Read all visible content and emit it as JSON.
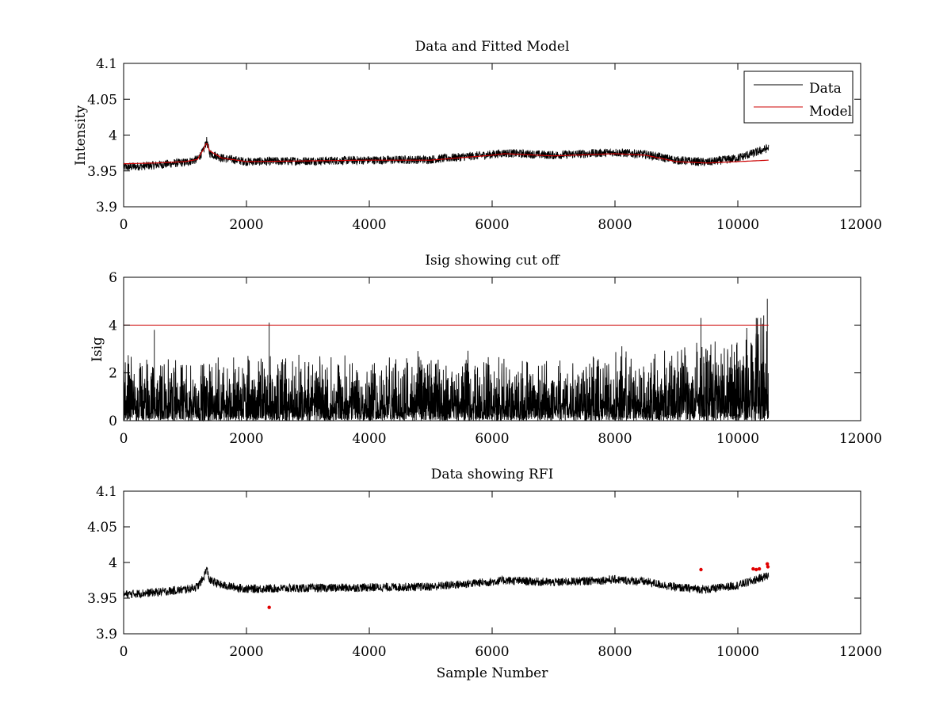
{
  "colors": {
    "data": "#000000",
    "model": "#cc0000",
    "cutoff": "#cc0000",
    "rfi": "#e00000"
  },
  "chart_data": [
    {
      "type": "line",
      "title": "Data and Fitted Model",
      "xlabel": "",
      "ylabel": "Intensity",
      "xlim": [
        0,
        12000
      ],
      "ylim": [
        3.9,
        4.1
      ],
      "xticks": [
        "0",
        "2000",
        "4000",
        "6000",
        "8000",
        "10000",
        "12000"
      ],
      "yticks": [
        "3.9",
        "3.95",
        "4",
        "4.05",
        "4.1"
      ],
      "legend": {
        "position": "top-right",
        "entries": [
          "Data",
          "Model"
        ]
      },
      "series": [
        {
          "name": "Data",
          "x": [
            0,
            500,
            1000,
            1200,
            1300,
            1350,
            1400,
            1600,
            2000,
            3000,
            4000,
            5000,
            6000,
            6200,
            7000,
            8000,
            8500,
            9000,
            9500,
            10000,
            10300,
            10500
          ],
          "values": [
            3.955,
            3.958,
            3.962,
            3.966,
            3.978,
            3.992,
            3.975,
            3.968,
            3.963,
            3.964,
            3.965,
            3.966,
            3.973,
            3.975,
            3.972,
            3.976,
            3.973,
            3.965,
            3.962,
            3.968,
            3.976,
            3.982
          ],
          "noise_amplitude": 0.006
        },
        {
          "name": "Model",
          "x": [
            0,
            500,
            1000,
            1200,
            1300,
            1350,
            1400,
            1600,
            2000,
            3000,
            4000,
            5000,
            6000,
            6200,
            7000,
            8000,
            8500,
            9000,
            9500,
            10000,
            10500
          ],
          "values": [
            3.96,
            3.961,
            3.963,
            3.966,
            3.98,
            3.99,
            3.978,
            3.968,
            3.963,
            3.964,
            3.965,
            3.965,
            3.972,
            3.974,
            3.971,
            3.974,
            3.972,
            3.963,
            3.961,
            3.963,
            3.965
          ]
        }
      ]
    },
    {
      "type": "line",
      "title": "Isig showing cut off",
      "xlabel": "",
      "ylabel": "Isig",
      "xlim": [
        0,
        12000
      ],
      "ylim": [
        0,
        6
      ],
      "xticks": [
        "0",
        "2000",
        "4000",
        "6000",
        "8000",
        "10000",
        "12000"
      ],
      "yticks": [
        "0",
        "2",
        "4",
        "6"
      ],
      "cutoff": 4,
      "series": [
        {
          "name": "Isig",
          "x": [
            0,
            1000,
            2000,
            3000,
            4000,
            5000,
            6000,
            7000,
            8000,
            9000,
            9500,
            10000,
            10300,
            10500
          ],
          "envelope": [
            2.4,
            2.2,
            2.4,
            2.3,
            2.2,
            2.3,
            2.3,
            2.2,
            2.4,
            2.6,
            2.8,
            3.0,
            3.8,
            4.2
          ],
          "spikes": [
            [
              500,
              3.8
            ],
            [
              2370,
              4.1
            ],
            [
              9400,
              4.3
            ],
            [
              10300,
              4.3
            ],
            [
              10480,
              5.1
            ]
          ]
        }
      ]
    },
    {
      "type": "line",
      "title": "Data showing RFI",
      "xlabel": "Sample Number",
      "ylabel": "",
      "xlim": [
        0,
        12000
      ],
      "ylim": [
        3.9,
        4.1
      ],
      "xticks": [
        "0",
        "2000",
        "4000",
        "6000",
        "8000",
        "10000",
        "12000"
      ],
      "yticks": [
        "3.9",
        "3.95",
        "4",
        "4.05",
        "4.1"
      ],
      "series": [
        {
          "name": "Data",
          "x": [
            0,
            500,
            1000,
            1200,
            1300,
            1350,
            1400,
            1600,
            2000,
            3000,
            4000,
            5000,
            6000,
            6200,
            7000,
            8000,
            8500,
            9000,
            9500,
            10000,
            10300,
            10500
          ],
          "values": [
            3.955,
            3.958,
            3.962,
            3.966,
            3.978,
            3.992,
            3.975,
            3.968,
            3.963,
            3.964,
            3.965,
            3.966,
            3.973,
            3.975,
            3.972,
            3.976,
            3.973,
            3.965,
            3.962,
            3.968,
            3.976,
            3.982
          ],
          "noise_amplitude": 0.006
        },
        {
          "name": "RFI",
          "type": "scatter",
          "x": [
            2370,
            9400,
            10250,
            10300,
            10350,
            10480,
            10490
          ],
          "values": [
            3.937,
            3.99,
            3.991,
            3.99,
            3.991,
            3.998,
            3.994
          ]
        }
      ]
    }
  ]
}
